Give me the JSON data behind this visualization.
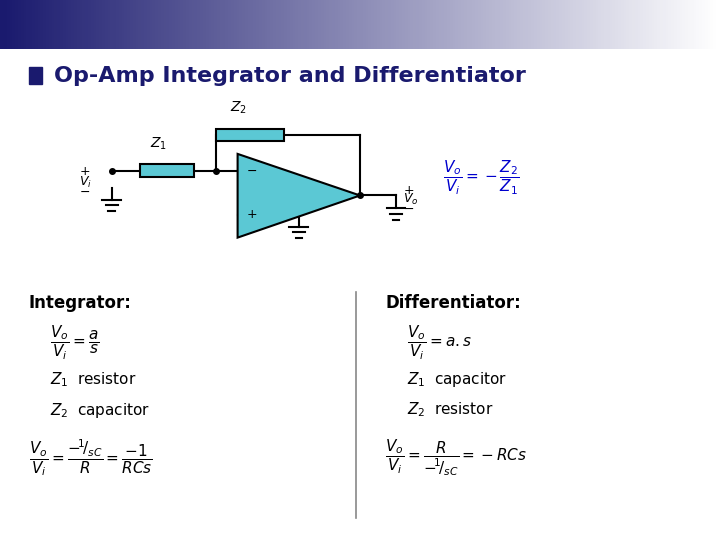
{
  "title": "Op-Amp Integrator and Differentiator",
  "title_bullet_color": "#1a1a6e",
  "header_gradient_colors": [
    "#1a1a6e",
    "#ffffff"
  ],
  "circuit_color": "#000000",
  "opamp_fill": "#5bc8d4",
  "component_fill": "#5bc8d4",
  "formula_color": "#0000cd",
  "text_color": "#000000",
  "integrator_label": "Integrator:",
  "differentiator_label": "Differentiator:",
  "bg_color": "#ffffff"
}
